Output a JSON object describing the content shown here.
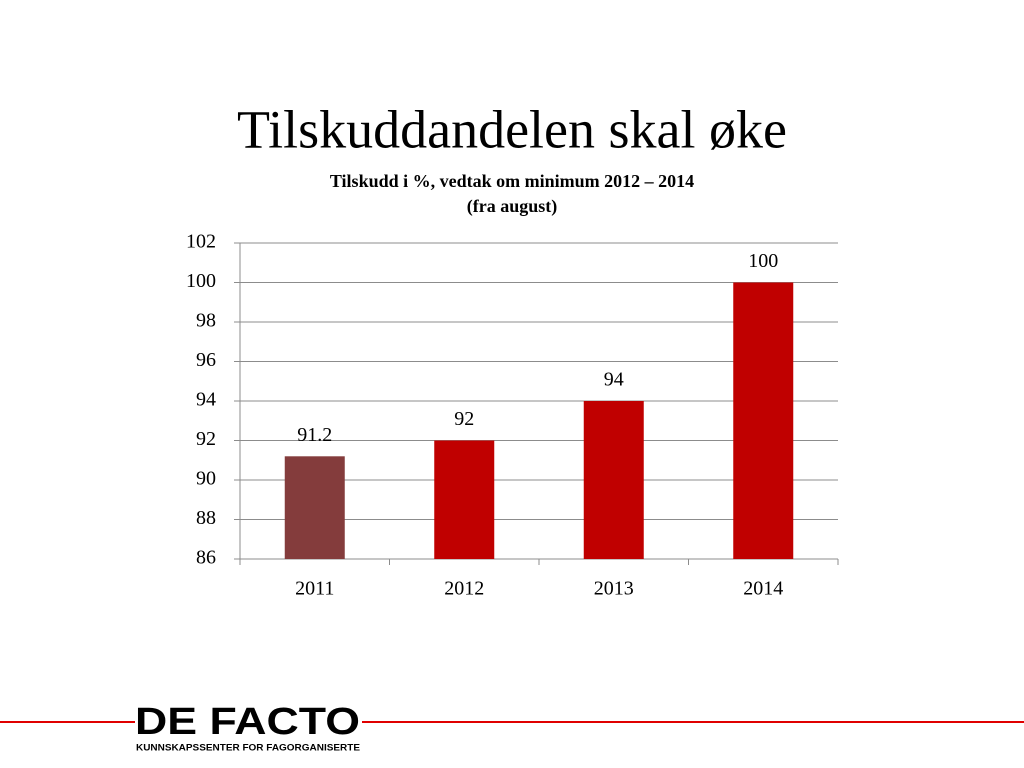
{
  "chart_data": {
    "type": "bar",
    "title": "Tilskuddandelen skal øke",
    "subtitle_lines": [
      "Tilskudd i %, vedtak om minimum 2012 – 2014",
      "(fra august)"
    ],
    "categories": [
      "2011",
      "2012",
      "2013",
      "2014"
    ],
    "values": [
      91.2,
      92,
      94,
      100
    ],
    "colors": [
      "#843c3c",
      "#c00000",
      "#c00000",
      "#c00000"
    ],
    "ylim": [
      86,
      102
    ],
    "yticks": [
      86,
      88,
      90,
      92,
      94,
      96,
      98,
      100,
      102
    ],
    "grid": true
  },
  "footer": {
    "logo": "DE FACTO",
    "tagline": "KUNNSKAPSSENTER FOR FAGORGANISERTE"
  }
}
